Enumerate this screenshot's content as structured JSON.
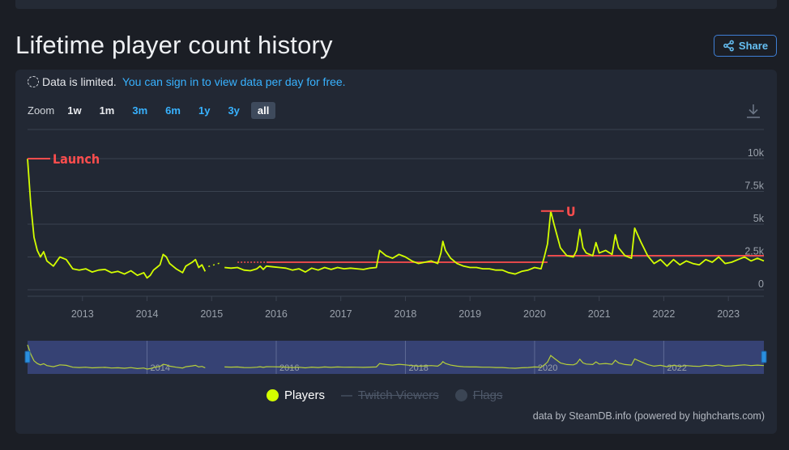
{
  "page": {
    "title": "Lifetime player count history",
    "share_label": "Share"
  },
  "notice": {
    "text": "Data is limited.",
    "link": "You can sign in to view data per day for free."
  },
  "zoom": {
    "label": "Zoom",
    "options": [
      "1w",
      "1m",
      "3m",
      "6m",
      "1y",
      "3y",
      "all"
    ],
    "active": "all"
  },
  "icons": {
    "share": "share-icon",
    "download": "download-icon",
    "limited": "dashed-circle-icon"
  },
  "colors": {
    "series": "#d4ff00",
    "annotation": "#ff4d4d",
    "navigator_fill": "#3a4780",
    "link": "#38b2ff"
  },
  "chart_data": {
    "type": "line",
    "xlim": [
      2012.15,
      2023.55
    ],
    "ylim": [
      0,
      10000
    ],
    "y_ticks": [
      0,
      2500,
      5000,
      7500,
      10000
    ],
    "y_tick_labels": [
      "0",
      "2.5k",
      "5k",
      "7.5k",
      "10k"
    ],
    "x_tick_labels": [
      "2013",
      "2014",
      "2015",
      "2016",
      "2017",
      "2018",
      "2019",
      "2020",
      "2021",
      "2022",
      "2023"
    ],
    "navigator_labels": [
      "2014",
      "2016",
      "2018",
      "2020",
      "2022"
    ],
    "series": [
      {
        "name": "Players",
        "gap": [
          2014.9,
          2015.2
        ],
        "points": [
          [
            2012.15,
            10000
          ],
          [
            2012.2,
            6500
          ],
          [
            2012.25,
            4000
          ],
          [
            2012.3,
            3000
          ],
          [
            2012.35,
            2500
          ],
          [
            2012.4,
            2900
          ],
          [
            2012.45,
            2200
          ],
          [
            2012.55,
            1800
          ],
          [
            2012.65,
            2500
          ],
          [
            2012.75,
            2300
          ],
          [
            2012.85,
            1600
          ],
          [
            2012.95,
            1500
          ],
          [
            2013.05,
            1600
          ],
          [
            2013.15,
            1350
          ],
          [
            2013.25,
            1500
          ],
          [
            2013.35,
            1550
          ],
          [
            2013.45,
            1300
          ],
          [
            2013.55,
            1400
          ],
          [
            2013.65,
            1200
          ],
          [
            2013.75,
            1450
          ],
          [
            2013.85,
            1100
          ],
          [
            2013.95,
            1300
          ],
          [
            2014.0,
            900
          ],
          [
            2014.05,
            1100
          ],
          [
            2014.1,
            1500
          ],
          [
            2014.15,
            1700
          ],
          [
            2014.2,
            1900
          ],
          [
            2014.25,
            2700
          ],
          [
            2014.3,
            2500
          ],
          [
            2014.35,
            2000
          ],
          [
            2014.45,
            1600
          ],
          [
            2014.55,
            1300
          ],
          [
            2014.6,
            1800
          ],
          [
            2014.7,
            2100
          ],
          [
            2014.75,
            2300
          ],
          [
            2014.8,
            1700
          ],
          [
            2014.85,
            1900
          ],
          [
            2014.9,
            1400
          ],
          [
            2015.2,
            1700
          ],
          [
            2015.3,
            1650
          ],
          [
            2015.4,
            1700
          ],
          [
            2015.5,
            1500
          ],
          [
            2015.6,
            1450
          ],
          [
            2015.7,
            1600
          ],
          [
            2015.75,
            1800
          ],
          [
            2015.8,
            1550
          ],
          [
            2015.85,
            1800
          ],
          [
            2015.95,
            1750
          ],
          [
            2016.05,
            1700
          ],
          [
            2016.15,
            1650
          ],
          [
            2016.25,
            1500
          ],
          [
            2016.35,
            1600
          ],
          [
            2016.45,
            1350
          ],
          [
            2016.55,
            1650
          ],
          [
            2016.65,
            1500
          ],
          [
            2016.75,
            1700
          ],
          [
            2016.85,
            1550
          ],
          [
            2016.95,
            1700
          ],
          [
            2017.05,
            1600
          ],
          [
            2017.15,
            1650
          ],
          [
            2017.25,
            1600
          ],
          [
            2017.35,
            1550
          ],
          [
            2017.45,
            1650
          ],
          [
            2017.55,
            1700
          ],
          [
            2017.6,
            3000
          ],
          [
            2017.7,
            2600
          ],
          [
            2017.8,
            2400
          ],
          [
            2017.9,
            2700
          ],
          [
            2018.0,
            2500
          ],
          [
            2018.1,
            2200
          ],
          [
            2018.2,
            2000
          ],
          [
            2018.3,
            2100
          ],
          [
            2018.4,
            2200
          ],
          [
            2018.5,
            2000
          ],
          [
            2018.55,
            2800
          ],
          [
            2018.58,
            3700
          ],
          [
            2018.62,
            3000
          ],
          [
            2018.7,
            2400
          ],
          [
            2018.8,
            2000
          ],
          [
            2018.9,
            1800
          ],
          [
            2019.0,
            1700
          ],
          [
            2019.1,
            1700
          ],
          [
            2019.2,
            1600
          ],
          [
            2019.3,
            1600
          ],
          [
            2019.4,
            1500
          ],
          [
            2019.5,
            1500
          ],
          [
            2019.6,
            1300
          ],
          [
            2019.7,
            1200
          ],
          [
            2019.8,
            1400
          ],
          [
            2019.9,
            1500
          ],
          [
            2020.0,
            1700
          ],
          [
            2020.1,
            1600
          ],
          [
            2020.15,
            2500
          ],
          [
            2020.2,
            3500
          ],
          [
            2020.25,
            6000
          ],
          [
            2020.3,
            5000
          ],
          [
            2020.4,
            3200
          ],
          [
            2020.5,
            2600
          ],
          [
            2020.6,
            2500
          ],
          [
            2020.65,
            3000
          ],
          [
            2020.7,
            4600
          ],
          [
            2020.75,
            3200
          ],
          [
            2020.8,
            2800
          ],
          [
            2020.9,
            2600
          ],
          [
            2020.95,
            3600
          ],
          [
            2021.0,
            2800
          ],
          [
            2021.1,
            3000
          ],
          [
            2021.2,
            2700
          ],
          [
            2021.25,
            4200
          ],
          [
            2021.3,
            3200
          ],
          [
            2021.4,
            2600
          ],
          [
            2021.5,
            2400
          ],
          [
            2021.55,
            4700
          ],
          [
            2021.65,
            3600
          ],
          [
            2021.75,
            2600
          ],
          [
            2021.85,
            2000
          ],
          [
            2021.95,
            2300
          ],
          [
            2022.05,
            1800
          ],
          [
            2022.15,
            2300
          ],
          [
            2022.25,
            1900
          ],
          [
            2022.35,
            2200
          ],
          [
            2022.45,
            2000
          ],
          [
            2022.55,
            1900
          ],
          [
            2022.65,
            2300
          ],
          [
            2022.75,
            2100
          ],
          [
            2022.85,
            2500
          ],
          [
            2022.95,
            2000
          ],
          [
            2023.05,
            2100
          ],
          [
            2023.15,
            2300
          ],
          [
            2023.25,
            2500
          ],
          [
            2023.35,
            2200
          ],
          [
            2023.45,
            2400
          ],
          [
            2023.55,
            2200
          ]
        ]
      }
    ],
    "annotations": [
      {
        "label": "Launch",
        "x": 2012.15,
        "y": 10000
      },
      {
        "label": "U",
        "x": 2020.25,
        "y": 6000
      }
    ],
    "reference_lines": [
      {
        "from": [
          2015.4,
          2100
        ],
        "to": [
          2020.2,
          2100
        ],
        "dotted_until": 2015.85
      },
      {
        "from": [
          2020.2,
          2600
        ],
        "to": [
          2023.55,
          2600
        ]
      }
    ],
    "legend": [
      {
        "label": "Players",
        "enabled": true
      },
      {
        "label": "Twitch Viewers",
        "enabled": false
      },
      {
        "label": "Flags",
        "enabled": false
      }
    ],
    "grid": true,
    "legend_position": "bottom-center",
    "credits": "data by SteamDB.info (powered by highcharts.com)"
  }
}
